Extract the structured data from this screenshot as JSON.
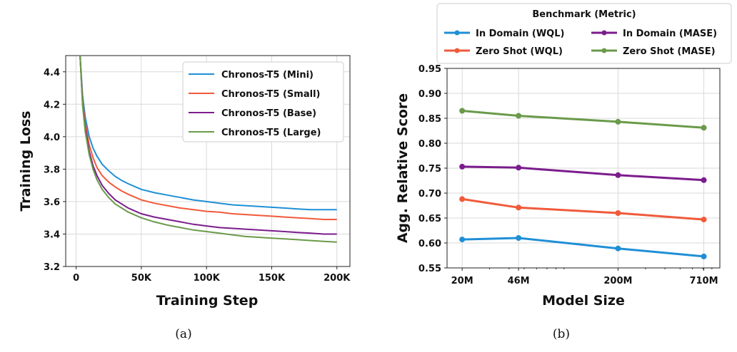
{
  "chart_data": [
    {
      "type": "line",
      "caption": "(a)",
      "xlabel": "Training Step",
      "ylabel": "Training Loss",
      "xlim": [
        -8000,
        210000
      ],
      "ylim": [
        3.2,
        4.5
      ],
      "xticks": [
        0,
        50000,
        100000,
        150000,
        200000
      ],
      "xtick_labels": [
        "0",
        "50K",
        "100K",
        "150K",
        "200K"
      ],
      "yticks": [
        3.2,
        3.4,
        3.6,
        3.8,
        4.0,
        4.2,
        4.4
      ],
      "ytick_labels": [
        "3.2",
        "3.4",
        "3.6",
        "3.8",
        "4.0",
        "4.2",
        "4.4"
      ],
      "grid": true,
      "legend_position": "top-right",
      "x": [
        3000,
        5000,
        7000,
        10000,
        13000,
        16000,
        20000,
        25000,
        30000,
        35000,
        40000,
        50000,
        60000,
        70000,
        80000,
        90000,
        100000,
        110000,
        120000,
        130000,
        140000,
        150000,
        160000,
        170000,
        180000,
        190000,
        200000
      ],
      "series": [
        {
          "name": "Chronos-T5 (Mini)",
          "color": "#1f8fd6",
          "values": [
            4.5,
            4.25,
            4.12,
            4.0,
            3.93,
            3.88,
            3.83,
            3.79,
            3.755,
            3.73,
            3.71,
            3.675,
            3.655,
            3.64,
            3.625,
            3.61,
            3.6,
            3.59,
            3.58,
            3.575,
            3.57,
            3.565,
            3.56,
            3.555,
            3.55,
            3.55,
            3.55
          ]
        },
        {
          "name": "Chronos-T5 (Small)",
          "color": "#f05a3a",
          "values": [
            4.5,
            4.22,
            4.08,
            3.95,
            3.87,
            3.81,
            3.76,
            3.72,
            3.69,
            3.665,
            3.645,
            3.61,
            3.59,
            3.575,
            3.56,
            3.55,
            3.54,
            3.535,
            3.525,
            3.52,
            3.515,
            3.51,
            3.505,
            3.5,
            3.495,
            3.49,
            3.49
          ]
        },
        {
          "name": "Chronos-T5 (Base)",
          "color": "#7b1c8c",
          "values": [
            4.5,
            4.2,
            4.05,
            3.91,
            3.82,
            3.76,
            3.7,
            3.65,
            3.61,
            3.585,
            3.56,
            3.525,
            3.505,
            3.49,
            3.475,
            3.46,
            3.45,
            3.44,
            3.435,
            3.43,
            3.425,
            3.42,
            3.415,
            3.41,
            3.405,
            3.4,
            3.4
          ]
        },
        {
          "name": "Chronos-T5 (Large)",
          "color": "#6a9a4a",
          "values": [
            4.5,
            4.19,
            4.03,
            3.89,
            3.8,
            3.735,
            3.675,
            3.625,
            3.585,
            3.56,
            3.535,
            3.5,
            3.475,
            3.455,
            3.44,
            3.425,
            3.415,
            3.405,
            3.395,
            3.385,
            3.38,
            3.375,
            3.37,
            3.365,
            3.36,
            3.355,
            3.35
          ]
        }
      ]
    },
    {
      "type": "line",
      "caption": "(b)",
      "xlabel": "Model Size",
      "ylabel": "Agg. Relative Score",
      "xscale": "log",
      "categories": [
        "20M",
        "46M",
        "200M",
        "710M"
      ],
      "x": [
        20,
        46,
        200,
        710
      ],
      "xlim": [
        16,
        900
      ],
      "ylim": [
        0.55,
        0.95
      ],
      "yticks": [
        0.55,
        0.6,
        0.65,
        0.7,
        0.75,
        0.8,
        0.85,
        0.9,
        0.95
      ],
      "ytick_labels": [
        "0.55",
        "0.60",
        "0.65",
        "0.70",
        "0.75",
        "0.80",
        "0.85",
        "0.90",
        "0.95"
      ],
      "grid": true,
      "legend_title": "Benchmark (Metric)",
      "legend_position": "top, outside",
      "series": [
        {
          "name": "In Domain (WQL)",
          "color": "#1f8fd6",
          "values": [
            0.607,
            0.61,
            0.589,
            0.573
          ]
        },
        {
          "name": "Zero Shot (WQL)",
          "color": "#f05a3a",
          "values": [
            0.688,
            0.671,
            0.66,
            0.647
          ]
        },
        {
          "name": "In Domain (MASE)",
          "color": "#7b1c8c",
          "values": [
            0.753,
            0.751,
            0.736,
            0.726
          ]
        },
        {
          "name": "Zero Shot (MASE)",
          "color": "#6a9a4a",
          "values": [
            0.865,
            0.855,
            0.843,
            0.831
          ]
        }
      ]
    }
  ]
}
